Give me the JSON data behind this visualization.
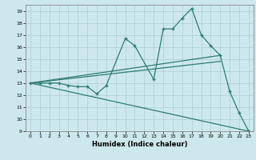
{
  "xlabel": "Humidex (Indice chaleur)",
  "background_color": "#cde8ec",
  "grid_color": "#aacdd4",
  "line_color": "#2e7d6e",
  "xlim": [
    -0.5,
    23.5
  ],
  "ylim": [
    9,
    19.5
  ],
  "yticks": [
    9,
    10,
    11,
    12,
    13,
    14,
    15,
    16,
    17,
    18,
    19
  ],
  "xticks": [
    0,
    1,
    2,
    3,
    4,
    5,
    6,
    7,
    8,
    9,
    10,
    11,
    12,
    13,
    14,
    15,
    16,
    17,
    18,
    19,
    20,
    21,
    22,
    23
  ],
  "line1_x": [
    0,
    1,
    2,
    3,
    4,
    5,
    6,
    7,
    8,
    10,
    11,
    13,
    14,
    15,
    16,
    17,
    18,
    19,
    20,
    21,
    22,
    23
  ],
  "line1_y": [
    13,
    13,
    13,
    13,
    12.8,
    12.7,
    12.7,
    12.1,
    12.8,
    16.7,
    16.1,
    13.3,
    17.5,
    17.5,
    18.4,
    19.2,
    17.0,
    16.1,
    15.3,
    12.3,
    10.5,
    9.0
  ],
  "line2_x": [
    0,
    20
  ],
  "line2_y": [
    13.0,
    15.3
  ],
  "line3_x": [
    0,
    20
  ],
  "line3_y": [
    13.0,
    14.8
  ],
  "line4_x": [
    0,
    23
  ],
  "line4_y": [
    13.0,
    9.0
  ]
}
